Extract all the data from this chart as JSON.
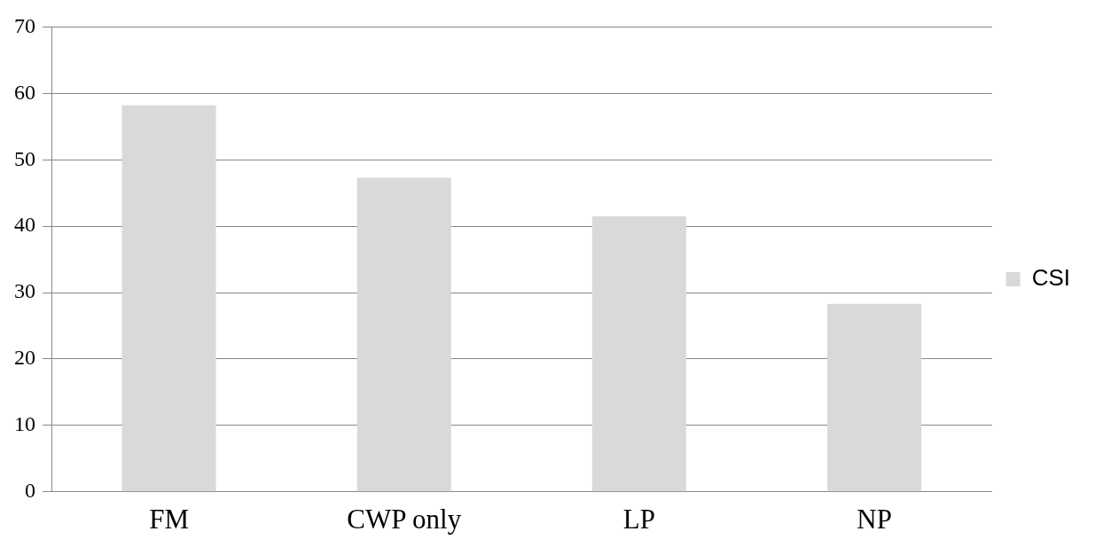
{
  "chart_data": {
    "type": "bar",
    "categories": [
      "FM",
      "CWP only",
      "LP",
      "NP"
    ],
    "series": [
      {
        "name": "CSI",
        "color": "#d9d9d9",
        "values": [
          58.2,
          47.3,
          41.5,
          28.3
        ]
      }
    ],
    "ylim": [
      0,
      70
    ],
    "yticks": [
      0,
      10,
      20,
      30,
      40,
      50,
      60,
      70
    ],
    "grid": "y",
    "legend": "right"
  }
}
